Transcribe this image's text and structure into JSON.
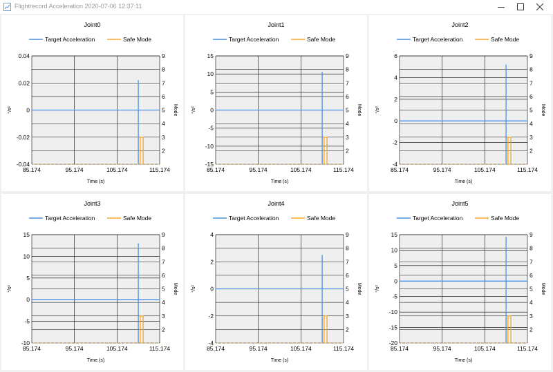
{
  "window": {
    "title": "Flightrecord Acceleration 2020-07-06 12:37:11",
    "icon": "app-chart-icon",
    "buttons": [
      "minimize-icon",
      "maximize-icon",
      "close-icon"
    ]
  },
  "colors": {
    "target_acceleration": "#4a90e2",
    "safe_mode": "#f5a623",
    "plot_background": "#efefef",
    "grid": "#000000"
  },
  "chart_data": [
    {
      "type": "line",
      "title": "Joint0",
      "xlabel": "Time (s)",
      "ylabel": "°/s²",
      "y2label": "Mode",
      "xlim": [
        85.174,
        115.174
      ],
      "xticks": [
        "85.174",
        "95.174",
        "105.174",
        "115.174"
      ],
      "ylim": [
        -0.04,
        0.04
      ],
      "yticks": [
        "-0.04",
        "-0.02",
        "0",
        "0.02",
        "0.04"
      ],
      "y2lim": [
        1,
        9
      ],
      "y2ticks": [
        "2",
        "3",
        "4",
        "5",
        "6",
        "7",
        "8",
        "9"
      ],
      "legend": "top",
      "series": [
        {
          "name": "Target Acceleration",
          "axis": "y",
          "x": [
            85.174,
            110.17,
            110.17,
            110.17,
            110.17,
            115.174
          ],
          "y": [
            0,
            0,
            0.022,
            -0.04,
            0,
            0
          ]
        },
        {
          "name": "Safe Mode",
          "axis": "y2",
          "x": [
            110.6,
            110.6,
            111.3,
            111.3
          ],
          "y": [
            1,
            3,
            3,
            1
          ]
        }
      ]
    },
    {
      "type": "line",
      "title": "Joint1",
      "xlabel": "Time (s)",
      "ylabel": "°/s²",
      "y2label": "Mode",
      "xlim": [
        85.174,
        115.174
      ],
      "xticks": [
        "85.174",
        "95.174",
        "105.174",
        "115.174"
      ],
      "ylim": [
        -15,
        15
      ],
      "yticks": [
        "-15",
        "-10",
        "-5",
        "0",
        "5",
        "10",
        "15"
      ],
      "y2lim": [
        1,
        9
      ],
      "y2ticks": [
        "2",
        "3",
        "4",
        "5",
        "6",
        "7",
        "8",
        "9"
      ],
      "legend": "top",
      "series": [
        {
          "name": "Target Acceleration",
          "axis": "y",
          "x": [
            85.174,
            110.17,
            110.17,
            110.17,
            110.17,
            115.174
          ],
          "y": [
            0,
            0,
            10.6,
            -15,
            0,
            0
          ]
        },
        {
          "name": "Safe Mode",
          "axis": "y2",
          "x": [
            110.6,
            110.6,
            111.3,
            111.3
          ],
          "y": [
            1,
            3,
            3,
            1
          ]
        }
      ]
    },
    {
      "type": "line",
      "title": "Joint2",
      "xlabel": "Time (s)",
      "ylabel": "°/s²",
      "y2label": "Mode",
      "xlim": [
        85.174,
        115.174
      ],
      "xticks": [
        "85.174",
        "95.174",
        "105.174",
        "115.174"
      ],
      "ylim": [
        -4,
        6
      ],
      "yticks": [
        "-4",
        "-2",
        "0",
        "2",
        "4",
        "6"
      ],
      "y2lim": [
        1,
        9
      ],
      "y2ticks": [
        "2",
        "3",
        "4",
        "5",
        "6",
        "7",
        "8",
        "9"
      ],
      "legend": "top",
      "series": [
        {
          "name": "Target Acceleration",
          "axis": "y",
          "x": [
            85.174,
            110.17,
            110.17,
            110.17,
            110.17,
            115.174
          ],
          "y": [
            0,
            0,
            5.2,
            -4,
            0,
            0
          ]
        },
        {
          "name": "Safe Mode",
          "axis": "y2",
          "x": [
            110.6,
            110.6,
            111.3,
            111.3
          ],
          "y": [
            1,
            3,
            3,
            1
          ]
        }
      ]
    },
    {
      "type": "line",
      "title": "Joint3",
      "xlabel": "Time (s)",
      "ylabel": "°/s²",
      "y2label": "Mode",
      "xlim": [
        85.174,
        115.174
      ],
      "xticks": [
        "85.174",
        "95.174",
        "105.174",
        "115.174"
      ],
      "ylim": [
        -10,
        15
      ],
      "yticks": [
        "-10",
        "-5",
        "0",
        "5",
        "10",
        "15"
      ],
      "y2lim": [
        1,
        9
      ],
      "y2ticks": [
        "2",
        "3",
        "4",
        "5",
        "6",
        "7",
        "8",
        "9"
      ],
      "legend": "top",
      "series": [
        {
          "name": "Target Acceleration",
          "axis": "y",
          "x": [
            85.174,
            110.17,
            110.17,
            110.17,
            110.17,
            115.174
          ],
          "y": [
            0,
            0,
            13,
            -10,
            0,
            0
          ]
        },
        {
          "name": "Safe Mode",
          "axis": "y2",
          "x": [
            110.6,
            110.6,
            111.3,
            111.3
          ],
          "y": [
            1,
            3,
            3,
            1
          ]
        }
      ]
    },
    {
      "type": "line",
      "title": "Joint4",
      "xlabel": "Time (s)",
      "ylabel": "°/s²",
      "y2label": "Mode",
      "xlim": [
        85.174,
        115.174
      ],
      "xticks": [
        "85.174",
        "95.174",
        "105.174",
        "115.174"
      ],
      "ylim": [
        -4,
        4
      ],
      "yticks": [
        "-4",
        "-2",
        "0",
        "2",
        "4"
      ],
      "y2lim": [
        1,
        9
      ],
      "y2ticks": [
        "2",
        "3",
        "4",
        "5",
        "6",
        "7",
        "8",
        "9"
      ],
      "legend": "top",
      "series": [
        {
          "name": "Target Acceleration",
          "axis": "y",
          "x": [
            85.174,
            110.17,
            110.17,
            110.17,
            110.17,
            115.174
          ],
          "y": [
            0,
            0,
            2.5,
            -4,
            0,
            0
          ]
        },
        {
          "name": "Safe Mode",
          "axis": "y2",
          "x": [
            110.6,
            110.6,
            111.3,
            111.3
          ],
          "y": [
            1,
            3,
            3,
            1
          ]
        }
      ]
    },
    {
      "type": "line",
      "title": "Joint5",
      "xlabel": "Time (s)",
      "ylabel": "°/s²",
      "y2label": "Mode",
      "xlim": [
        85.174,
        115.174
      ],
      "xticks": [
        "85.174",
        "95.174",
        "105.174",
        "115.174"
      ],
      "ylim": [
        -20,
        15
      ],
      "yticks": [
        "-20",
        "-15",
        "-10",
        "-5",
        "0",
        "5",
        "10",
        "15"
      ],
      "y2lim": [
        1,
        9
      ],
      "y2ticks": [
        "2",
        "3",
        "4",
        "5",
        "6",
        "7",
        "8",
        "9"
      ],
      "legend": "top",
      "series": [
        {
          "name": "Target Acceleration",
          "axis": "y",
          "x": [
            85.174,
            110.17,
            110.17,
            110.17,
            110.17,
            115.174
          ],
          "y": [
            0,
            0,
            14.3,
            -20,
            0,
            0
          ]
        },
        {
          "name": "Safe Mode",
          "axis": "y2",
          "x": [
            110.6,
            110.6,
            111.3,
            111.3
          ],
          "y": [
            1,
            3,
            3,
            1
          ]
        }
      ]
    }
  ]
}
